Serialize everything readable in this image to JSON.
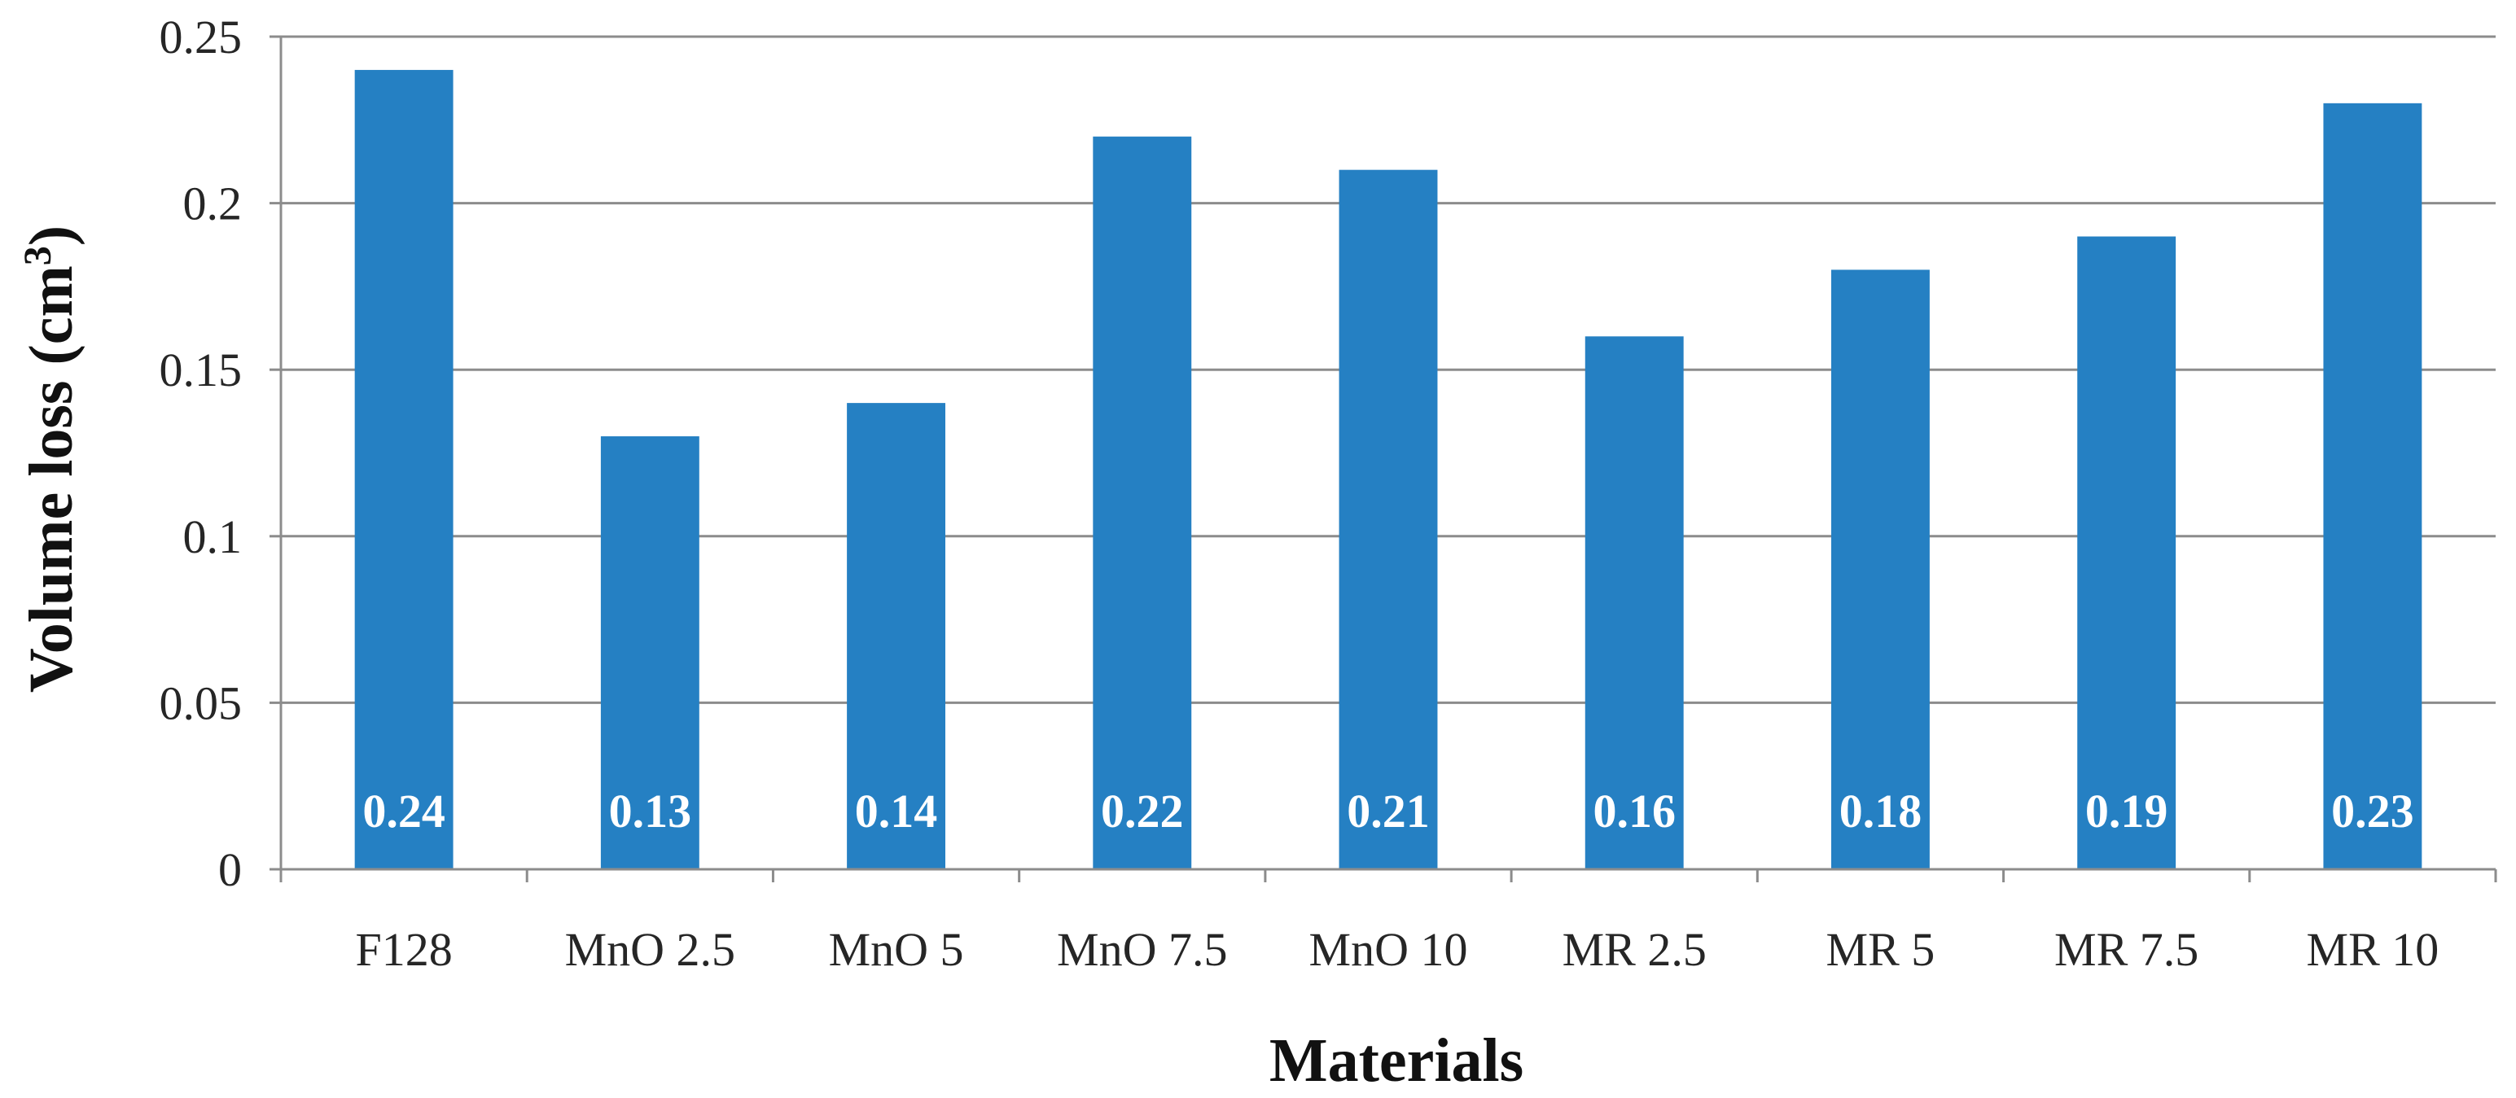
{
  "chart_data": {
    "type": "bar",
    "categories": [
      "F128",
      "MnO 2.5",
      "MnO 5",
      "MnO 7.5",
      "MnO 10",
      "MR 2.5",
      "MR 5",
      "MR 7.5",
      "MR 10"
    ],
    "values": [
      0.24,
      0.13,
      0.14,
      0.22,
      0.21,
      0.16,
      0.18,
      0.19,
      0.23
    ],
    "data_labels": [
      "0.24",
      "0.13",
      "0.14",
      "0.22",
      "0.21",
      "0.16",
      "0.18",
      "0.19",
      "0.23"
    ],
    "xlabel": "Materials",
    "ylabel_main": "Volume loss (cm",
    "ylabel_sup": "3",
    "ylabel_end": ")",
    "ylim": [
      0,
      0.25
    ],
    "y_ticks": [
      0,
      0.05,
      0.1,
      0.15,
      0.2,
      0.25
    ],
    "y_tick_labels": [
      "0",
      "0.05",
      "0.1",
      "0.15",
      "0.2",
      "0.25"
    ],
    "grid": true,
    "legend": "none",
    "bar_color": "#2580C3",
    "grid_color": "#8C8C8C",
    "axis_color": "#8C8C8C"
  }
}
